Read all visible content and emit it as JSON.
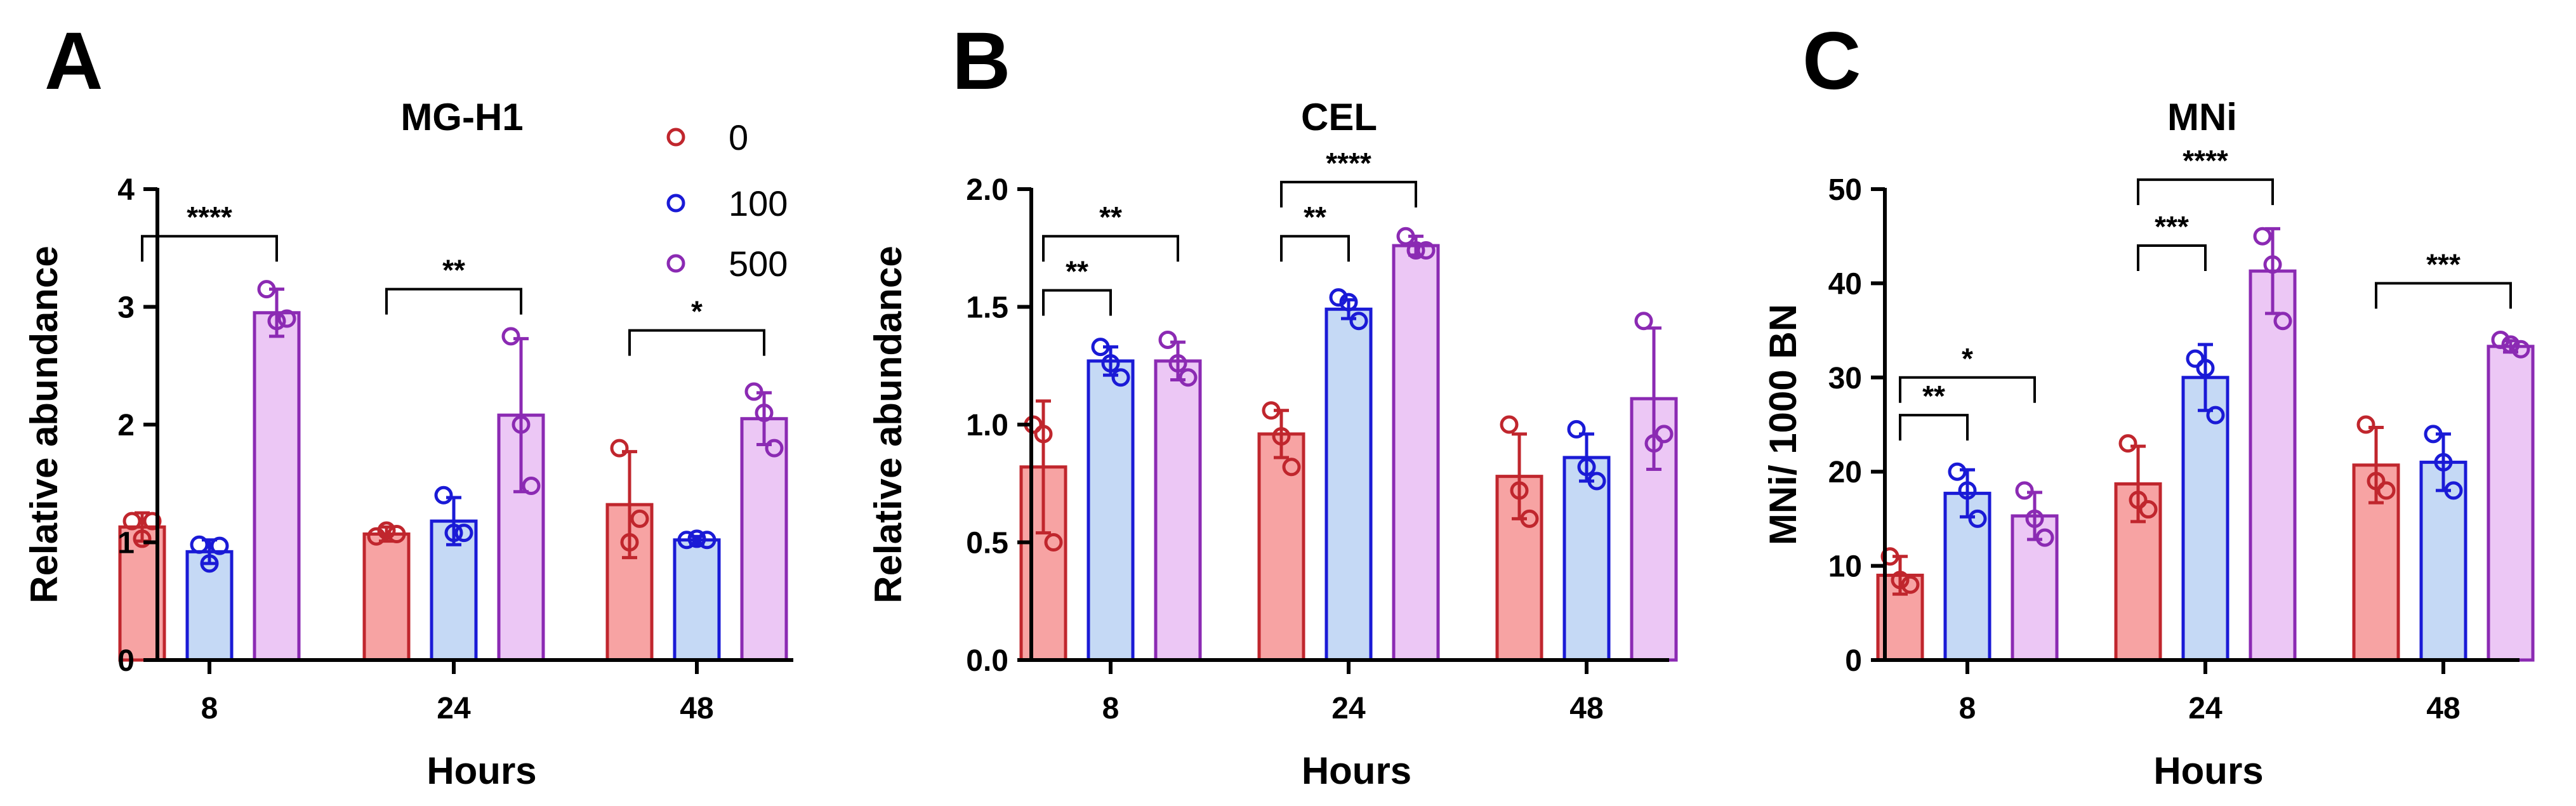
{
  "figure": {
    "legend": {
      "entries": [
        "0",
        "100",
        "500"
      ],
      "colors": [
        "#c0262d",
        "#1a1ad6",
        "#8b2ab3"
      ],
      "placement": "top-right of panel A"
    }
  },
  "chart_data": [
    {
      "panel": "A",
      "type": "bar",
      "title": "MG-H1",
      "xlabel": "Hours",
      "ylabel": "Relative abundance",
      "categories": [
        "8",
        "24",
        "48"
      ],
      "ylim": [
        0,
        4
      ],
      "yticks": [
        0,
        1,
        2,
        3,
        4
      ],
      "ytick_labels": [
        "0",
        "1",
        "2",
        "3",
        "4"
      ],
      "series": [
        {
          "name": "0",
          "color": "#c0262d",
          "fill": "#f7a3a3",
          "values": [
            1.13,
            1.07,
            1.32
          ],
          "sd": [
            0.12,
            0.06,
            0.45
          ],
          "points": [
            [
              1.18,
              1.03,
              1.18
            ],
            [
              1.05,
              1.1,
              1.07
            ],
            [
              1.8,
              1.0,
              1.2
            ]
          ]
        },
        {
          "name": "100",
          "color": "#1a1ad6",
          "fill": "#c5d9f5",
          "values": [
            0.92,
            1.18,
            1.02
          ],
          "sd": [
            0.1,
            0.2,
            0.03
          ],
          "points": [
            [
              0.98,
              0.82,
              0.97
            ],
            [
              1.4,
              1.08,
              1.08
            ],
            [
              1.02,
              1.03,
              1.02
            ]
          ]
        },
        {
          "name": "500",
          "color": "#8b2ab3",
          "fill": "#ecc7f5",
          "values": [
            2.95,
            2.08,
            2.05
          ],
          "sd": [
            0.2,
            0.65,
            0.22
          ],
          "points": [
            [
              3.15,
              2.88,
              2.9
            ],
            [
              2.75,
              2.0,
              1.48
            ],
            [
              2.28,
              2.1,
              1.8
            ]
          ]
        }
      ],
      "significance": [
        {
          "label": "****",
          "from": [
            0,
            0
          ],
          "to": [
            0,
            2
          ],
          "y": 3.6
        },
        {
          "label": "**",
          "from": [
            1,
            0
          ],
          "to": [
            1,
            2
          ],
          "y": 3.15
        },
        {
          "label": "*",
          "from": [
            2,
            0
          ],
          "to": [
            2,
            2
          ],
          "y": 2.8
        }
      ]
    },
    {
      "panel": "B",
      "type": "bar",
      "title": "CEL",
      "xlabel": "Hours",
      "ylabel": "Relative abundance",
      "categories": [
        "8",
        "24",
        "48"
      ],
      "ylim": [
        0,
        2
      ],
      "yticks": [
        0,
        0.5,
        1,
        1.5,
        2
      ],
      "ytick_labels": [
        "0.0",
        "0.5",
        "1.0",
        "1.5",
        "2.0"
      ],
      "series": [
        {
          "name": "0",
          "color": "#c0262d",
          "fill": "#f7a3a3",
          "values": [
            0.82,
            0.96,
            0.78
          ],
          "sd": [
            0.28,
            0.1,
            0.18
          ],
          "points": [
            [
              1.0,
              0.96,
              0.5
            ],
            [
              1.06,
              0.95,
              0.82
            ],
            [
              1.0,
              0.72,
              0.6
            ]
          ]
        },
        {
          "name": "100",
          "color": "#1a1ad6",
          "fill": "#c5d9f5",
          "values": [
            1.27,
            1.49,
            0.86
          ],
          "sd": [
            0.06,
            0.04,
            0.1
          ],
          "points": [
            [
              1.33,
              1.26,
              1.2
            ],
            [
              1.54,
              1.52,
              1.44
            ],
            [
              0.98,
              0.82,
              0.76
            ]
          ]
        },
        {
          "name": "500",
          "color": "#8b2ab3",
          "fill": "#ecc7f5",
          "values": [
            1.27,
            1.76,
            1.11
          ],
          "sd": [
            0.08,
            0.04,
            0.3
          ],
          "points": [
            [
              1.36,
              1.26,
              1.2
            ],
            [
              1.8,
              1.74,
              1.74
            ],
            [
              1.44,
              0.92,
              0.96
            ]
          ]
        }
      ],
      "significance": [
        {
          "label": "**",
          "from": [
            0,
            0
          ],
          "to": [
            0,
            1
          ],
          "y": 1.57
        },
        {
          "label": "**",
          "from": [
            0,
            0
          ],
          "to": [
            0,
            2
          ],
          "y": 1.8
        },
        {
          "label": "**",
          "from": [
            1,
            0
          ],
          "to": [
            1,
            1
          ],
          "y": 1.8
        },
        {
          "label": "****",
          "from": [
            1,
            0
          ],
          "to": [
            1,
            2
          ],
          "y": 2.03
        }
      ]
    },
    {
      "panel": "C",
      "type": "bar",
      "title": "MNi",
      "xlabel": "Hours",
      "ylabel": "MNi/ 1000 BN",
      "categories": [
        "8",
        "24",
        "48"
      ],
      "ylim": [
        0,
        50
      ],
      "yticks": [
        0,
        10,
        20,
        30,
        40,
        50
      ],
      "ytick_labels": [
        "0",
        "10",
        "20",
        "30",
        "40",
        "50"
      ],
      "series": [
        {
          "name": "0",
          "color": "#c0262d",
          "fill": "#f7a3a3",
          "values": [
            9,
            18.7,
            20.7
          ],
          "sd": [
            2,
            4,
            4
          ],
          "points": [
            [
              11,
              8.5,
              8
            ],
            [
              23,
              17,
              16
            ],
            [
              25,
              19,
              18
            ]
          ]
        },
        {
          "name": "100",
          "color": "#1a1ad6",
          "fill": "#c5d9f5",
          "values": [
            17.7,
            30,
            21
          ],
          "sd": [
            2.5,
            3.5,
            3
          ],
          "points": [
            [
              20,
              18,
              15
            ],
            [
              32,
              31,
              26
            ],
            [
              24,
              21,
              18
            ]
          ]
        },
        {
          "name": "500",
          "color": "#8b2ab3",
          "fill": "#ecc7f5",
          "values": [
            15.3,
            41.3,
            33.3
          ],
          "sd": [
            2.5,
            4.5,
            0.6
          ],
          "points": [
            [
              18,
              15,
              13
            ],
            [
              45,
              42,
              36
            ],
            [
              34,
              33.5,
              33
            ]
          ]
        }
      ],
      "significance": [
        {
          "label": "**",
          "from": [
            0,
            0
          ],
          "to": [
            0,
            1
          ],
          "y": 26
        },
        {
          "label": "*",
          "from": [
            0,
            0
          ],
          "to": [
            0,
            2
          ],
          "y": 30
        },
        {
          "label": "***",
          "from": [
            1,
            0
          ],
          "to": [
            1,
            1
          ],
          "y": 44
        },
        {
          "label": "****",
          "from": [
            1,
            0
          ],
          "to": [
            1,
            2
          ],
          "y": 51
        },
        {
          "label": "***",
          "from": [
            2,
            0
          ],
          "to": [
            2,
            2
          ],
          "y": 40
        }
      ]
    }
  ]
}
